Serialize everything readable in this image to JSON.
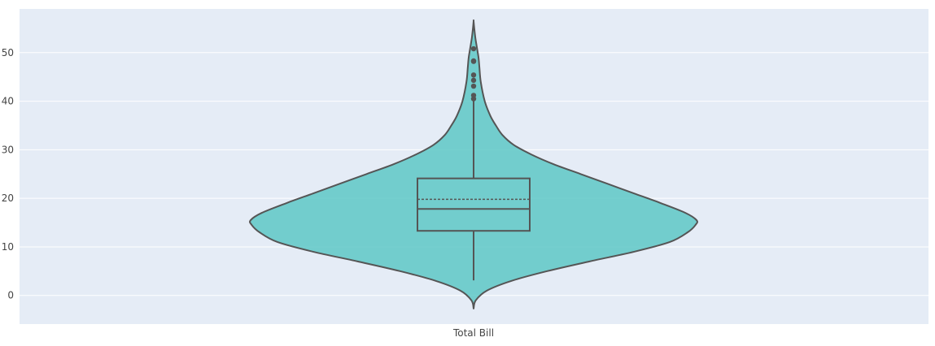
{
  "chart_data": {
    "type": "violin",
    "categories": [
      "Total Bill"
    ],
    "ylim": [
      -5.9,
      59
    ],
    "yticks": [
      0,
      10,
      20,
      30,
      40,
      50
    ],
    "grid": true,
    "colors": {
      "background": "#e5ecf6",
      "grid": "#ffffff",
      "fill": "#5ec8c6",
      "line": "#555555"
    },
    "violin": {
      "min_extent": -2.7,
      "max_extent": 56.5,
      "density_profile": [
        [
          -2.7,
          0.0
        ],
        [
          -1.0,
          0.01
        ],
        [
          1.0,
          0.06
        ],
        [
          3.0,
          0.17
        ],
        [
          5.0,
          0.33
        ],
        [
          7.0,
          0.52
        ],
        [
          9.0,
          0.72
        ],
        [
          11.0,
          0.88
        ],
        [
          13.0,
          0.96
        ],
        [
          14.5,
          0.995
        ],
        [
          15.5,
          1.0
        ],
        [
          17.0,
          0.95
        ],
        [
          19.0,
          0.84
        ],
        [
          21.0,
          0.72
        ],
        [
          23.0,
          0.6
        ],
        [
          25.0,
          0.48
        ],
        [
          27.0,
          0.36
        ],
        [
          29.0,
          0.26
        ],
        [
          31.0,
          0.18
        ],
        [
          33.0,
          0.13
        ],
        [
          35.0,
          0.1
        ],
        [
          37.0,
          0.075
        ],
        [
          40.0,
          0.05
        ],
        [
          44.0,
          0.032
        ],
        [
          47.0,
          0.026
        ],
        [
          49.0,
          0.022
        ],
        [
          51.0,
          0.015
        ],
        [
          53.0,
          0.008
        ],
        [
          55.0,
          0.003
        ],
        [
          56.5,
          0.0
        ]
      ],
      "box": {
        "q1": 13.3,
        "median": 17.8,
        "q3": 24.1,
        "mean": 19.8,
        "whisker_low": 3.1,
        "whisker_high": 40.5
      },
      "outliers": [
        40.5,
        41.2,
        43.1,
        44.3,
        45.4,
        48.2,
        48.3,
        50.8
      ]
    }
  }
}
